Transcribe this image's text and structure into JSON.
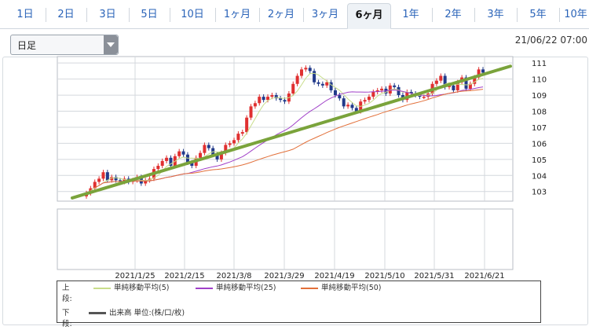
{
  "tabs": [
    {
      "label": "1日"
    },
    {
      "label": "2日"
    },
    {
      "label": "3日"
    },
    {
      "label": "5日"
    },
    {
      "label": "10日"
    },
    {
      "label": "1ヶ月"
    },
    {
      "label": "2ヶ月"
    },
    {
      "label": "3ヶ月"
    },
    {
      "label": "6ヶ月",
      "active": true
    },
    {
      "label": "1年"
    },
    {
      "label": "2年"
    },
    {
      "label": "3年"
    },
    {
      "label": "5年"
    },
    {
      "label": "10年"
    }
  ],
  "period_select": {
    "value": "日足"
  },
  "timestamp": "21/06/22 07:00",
  "chart_data": {
    "type": "candlestick",
    "x_ticks": [
      "2021/1/25",
      "2021/2/15",
      "2021/3/8",
      "2021/3/29",
      "2021/4/19",
      "2021/5/10",
      "2021/5/31",
      "2021/6/21"
    ],
    "y_ticks": [
      103,
      104,
      105,
      106,
      107,
      108,
      109,
      110,
      111
    ],
    "ylim": [
      102.4,
      111.4
    ],
    "series": [
      {
        "name": "単純移動平均(5)",
        "color": "#c8dd8a"
      },
      {
        "name": "単純移動平均(25)",
        "color": "#a040c8"
      },
      {
        "name": "単純移動平均(50)",
        "color": "#e2703a"
      }
    ],
    "closes": [
      102.9,
      103.2,
      103.6,
      103.8,
      104.2,
      103.7,
      103.9,
      103.7,
      103.6,
      103.8,
      103.6,
      103.7,
      103.9,
      103.5,
      103.7,
      103.8,
      104.4,
      104.6,
      104.9,
      105.1,
      104.6,
      105.2,
      105.5,
      105.3,
      104.8,
      104.6,
      105.1,
      105.4,
      105.9,
      105.7,
      105.3,
      105.0,
      105.4,
      105.9,
      106.0,
      106.2,
      106.6,
      106.7,
      107.6,
      108.3,
      108.5,
      108.9,
      108.7,
      108.9,
      109.0,
      108.8,
      108.7,
      108.6,
      109.1,
      109.7,
      110.2,
      110.6,
      110.7,
      110.5,
      109.8,
      109.7,
      109.6,
      109.8,
      109.3,
      109.0,
      108.8,
      108.3,
      108.4,
      108.2,
      108.0,
      108.6,
      108.7,
      108.9,
      109.2,
      109.3,
      109.4,
      109.1,
      109.6,
      109.5,
      109.0,
      108.7,
      109.2,
      109.1,
      109.0,
      108.9,
      108.9,
      109.1,
      109.7,
      109.9,
      110.2,
      109.5,
      109.6,
      109.3,
      109.8,
      110.1,
      109.4,
      109.7,
      110.1,
      110.6,
      110.4
    ],
    "trendline": {
      "color": "#7aa33b",
      "from": [
        0,
        102.6
      ],
      "to": [
        1,
        110.8
      ]
    },
    "lower_panel": {
      "label": "下段:",
      "series_name": "出来高 単位:(株/口/枚)"
    },
    "legend_upper_label": "上段:"
  }
}
